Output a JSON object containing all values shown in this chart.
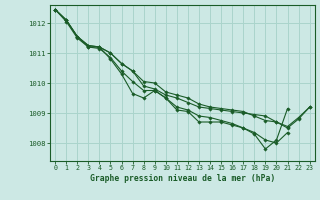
{
  "background_color": "#cce8e4",
  "grid_color": "#aad4cc",
  "line_color": "#1a5c28",
  "title": "Graphe pression niveau de la mer (hPa)",
  "xlim": [
    -0.5,
    23.5
  ],
  "ylim": [
    1007.4,
    1012.6
  ],
  "yticks": [
    1008,
    1009,
    1010,
    1011,
    1012
  ],
  "xticks": [
    0,
    1,
    2,
    3,
    4,
    5,
    6,
    7,
    8,
    9,
    10,
    11,
    12,
    13,
    14,
    15,
    16,
    17,
    18,
    19,
    20,
    21,
    22,
    23
  ],
  "series": [
    [
      1012.45,
      1012.1,
      1011.55,
      1011.2,
      1011.2,
      1010.8,
      1010.3,
      1009.65,
      1009.5,
      1009.75,
      1009.5,
      1009.1,
      1009.05,
      1008.7,
      1008.7,
      1008.7,
      1008.6,
      1008.5,
      1008.3,
      1007.8,
      1008.1,
      1009.15,
      null,
      null
    ],
    [
      1012.45,
      1012.1,
      1011.55,
      1011.25,
      1011.2,
      1011.0,
      1010.65,
      1010.4,
      1009.9,
      1009.8,
      1009.6,
      1009.5,
      1009.35,
      1009.2,
      1009.15,
      1009.1,
      1009.05,
      1009.0,
      1008.95,
      1008.9,
      1008.7,
      1008.5,
      1008.8,
      1009.2
    ],
    [
      1012.45,
      1012.1,
      1011.55,
      1011.25,
      1011.2,
      1011.0,
      1010.65,
      1010.4,
      1010.05,
      1010.0,
      1009.7,
      1009.6,
      1009.5,
      1009.3,
      1009.2,
      1009.15,
      1009.1,
      1009.05,
      1008.9,
      1008.75,
      1008.7,
      1008.55,
      1008.85,
      1009.2
    ],
    [
      1012.45,
      1012.05,
      1011.5,
      1011.2,
      1011.15,
      1010.85,
      1010.4,
      1010.05,
      1009.75,
      1009.75,
      1009.5,
      1009.2,
      1009.1,
      1008.9,
      1008.85,
      1008.75,
      1008.65,
      1008.5,
      1008.35,
      1008.1,
      1008.0,
      1008.35,
      null,
      null
    ]
  ]
}
